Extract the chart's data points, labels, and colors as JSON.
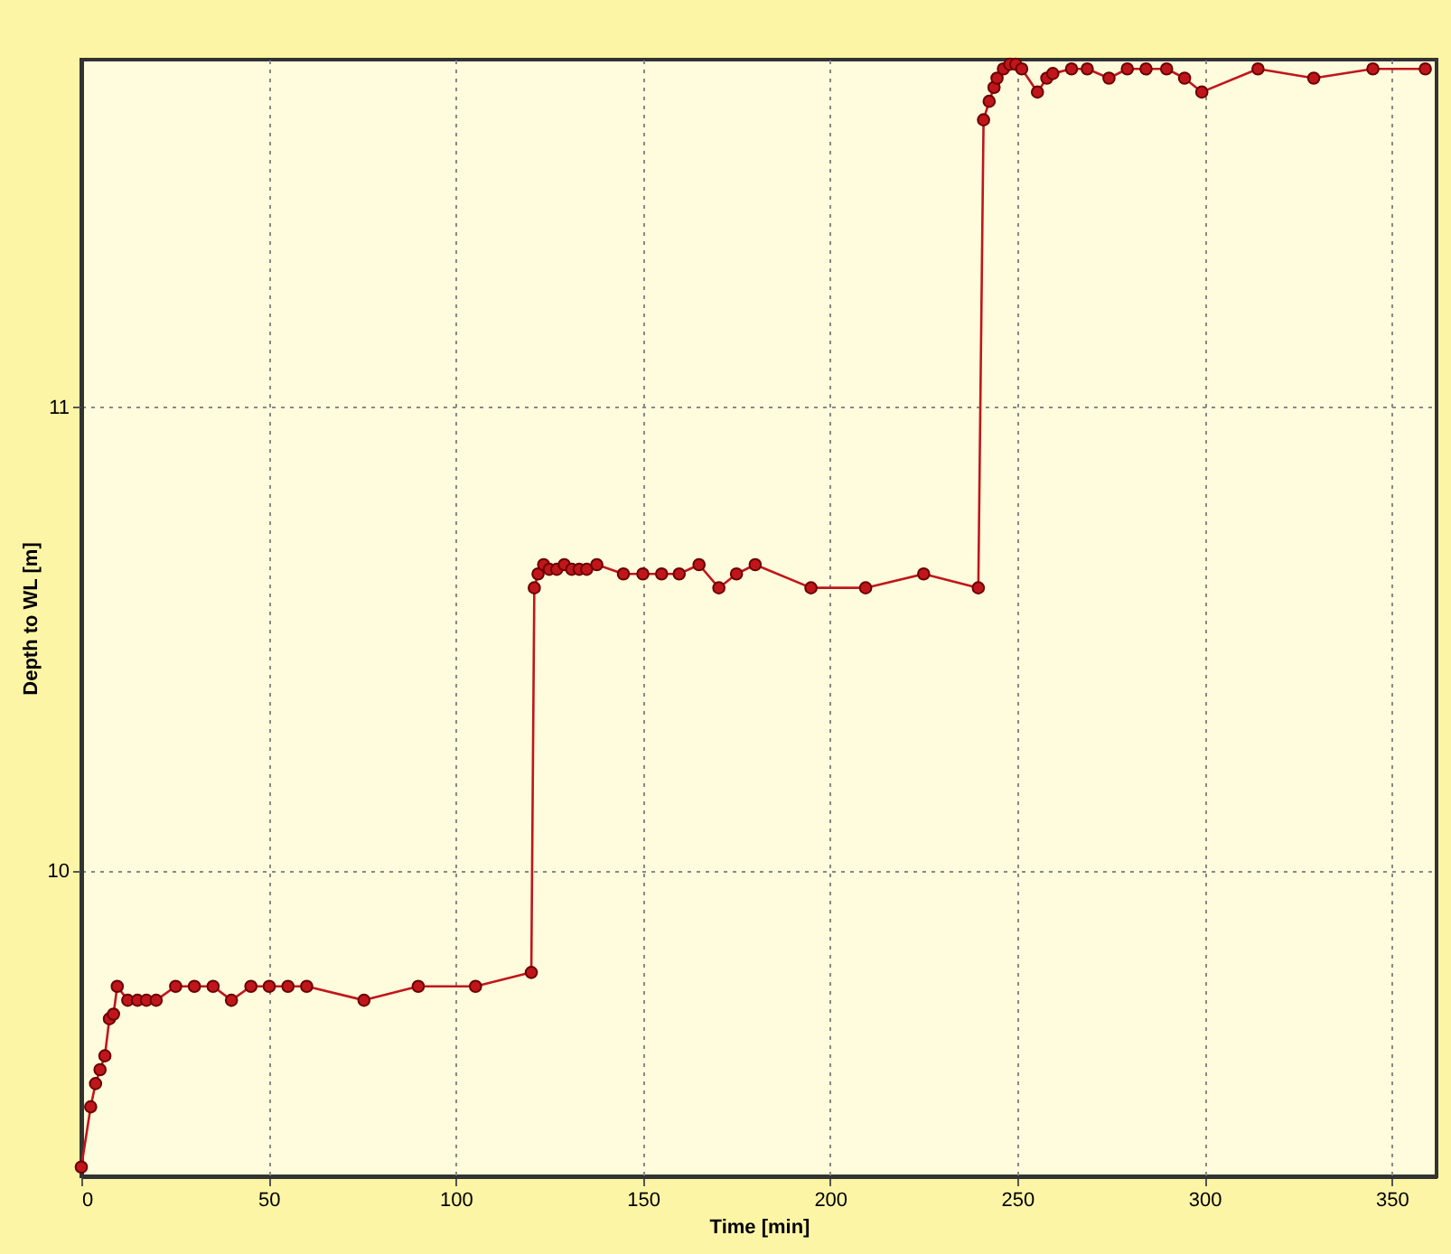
{
  "chart_data": {
    "type": "line",
    "xlabel": "Time [min]",
    "ylabel": "Depth to WL [m]",
    "xlim": [
      0,
      362
    ],
    "ylim": [
      9.34,
      11.75
    ],
    "xticks": [
      0,
      50,
      100,
      150,
      200,
      250,
      300,
      350
    ],
    "yticks": [
      10,
      11
    ],
    "grid": true,
    "marker": "circle",
    "line_style": "solid",
    "series": [
      {
        "color": "#c0161b",
        "x": [
          0,
          2.5,
          3.8,
          5,
          6.3,
          7.5,
          8.6,
          9.6,
          12.4,
          15,
          17.4,
          20,
          25.2,
          30.2,
          35.2,
          40.1,
          45.3,
          50.2,
          55.2,
          60.2,
          75.5,
          90,
          105.3,
          120.2,
          121,
          122,
          123.5,
          125,
          127,
          129,
          131,
          133,
          135,
          137.7,
          144.8,
          150,
          155,
          159.7,
          165,
          170.3,
          175,
          180,
          194.9,
          209.5,
          225,
          239.6,
          241,
          242.5,
          243.8,
          244.6,
          246.3,
          248,
          249.6,
          251.2,
          255.4,
          257.9,
          259.5,
          264.5,
          268.7,
          274.5,
          279.4,
          284.4,
          289.9,
          294.7,
          299.3,
          314.3,
          329.2,
          345,
          359
        ],
        "values": [
          9.36,
          9.49,
          9.54,
          9.57,
          9.6,
          9.68,
          9.69,
          9.75,
          9.72,
          9.72,
          9.72,
          9.72,
          9.75,
          9.75,
          9.75,
          9.72,
          9.75,
          9.75,
          9.75,
          9.75,
          9.72,
          9.75,
          9.75,
          9.78,
          10.61,
          10.64,
          10.66,
          10.65,
          10.65,
          10.66,
          10.65,
          10.65,
          10.65,
          10.66,
          10.64,
          10.64,
          10.64,
          10.64,
          10.66,
          10.61,
          10.64,
          10.66,
          10.61,
          10.61,
          10.64,
          10.61,
          11.62,
          11.66,
          11.69,
          11.71,
          11.73,
          11.74,
          11.74,
          11.73,
          11.68,
          11.71,
          11.72,
          11.73,
          11.73,
          11.71,
          11.73,
          11.73,
          11.73,
          11.71,
          11.68,
          11.73,
          11.71,
          11.73,
          11.73
        ]
      }
    ]
  }
}
